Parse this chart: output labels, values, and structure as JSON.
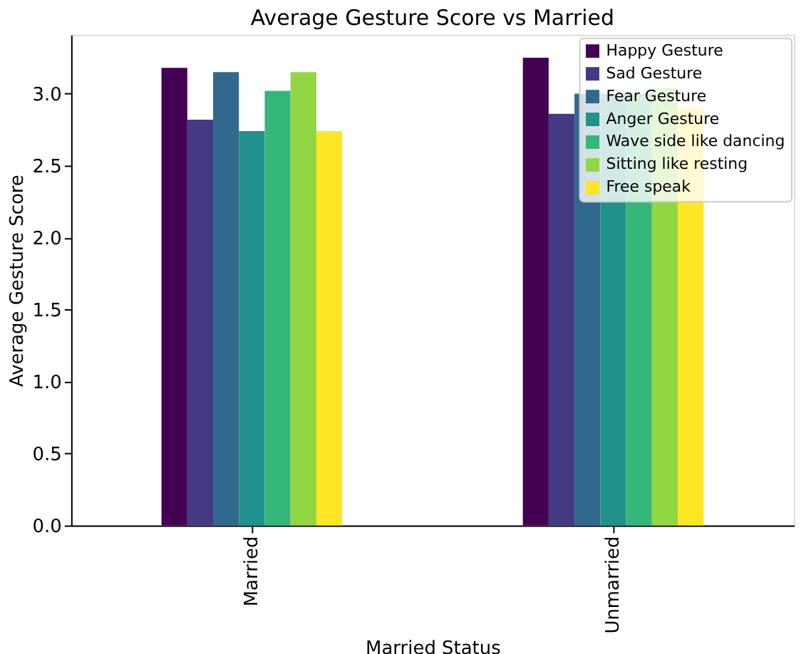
{
  "chart_data": {
    "type": "bar",
    "title": "Average Gesture Score vs Married",
    "xlabel": "Married Status",
    "ylabel": "Average Gesture Score",
    "categories": [
      "Married",
      "Unmarried"
    ],
    "series": [
      {
        "name": "Happy Gesture",
        "color": "#440154",
        "values": [
          3.18,
          3.25
        ]
      },
      {
        "name": "Sad Gesture",
        "color": "#443983",
        "values": [
          2.82,
          2.86
        ]
      },
      {
        "name": "Fear Gesture",
        "color": "#31688e",
        "values": [
          3.15,
          3.0
        ]
      },
      {
        "name": "Anger Gesture",
        "color": "#21918c",
        "values": [
          2.74,
          3.0
        ]
      },
      {
        "name": "Wave side like dancing",
        "color": "#35b779",
        "values": [
          3.02,
          3.0
        ]
      },
      {
        "name": "Sitting like resting",
        "color": "#90d743",
        "values": [
          3.15,
          3.04
        ]
      },
      {
        "name": "Free speak",
        "color": "#fde725",
        "values": [
          2.74,
          2.9
        ]
      }
    ],
    "ylim": [
      0,
      3.41
    ],
    "yticks": [
      {
        "value": 0,
        "label": "0.0"
      },
      0.5,
      {
        "value": 1,
        "label": "1.0"
      },
      1.5,
      {
        "value": 2,
        "label": "2.0"
      },
      2.5,
      {
        "value": 3,
        "label": "3.0"
      }
    ],
    "grid": false,
    "legend": "top right"
  }
}
